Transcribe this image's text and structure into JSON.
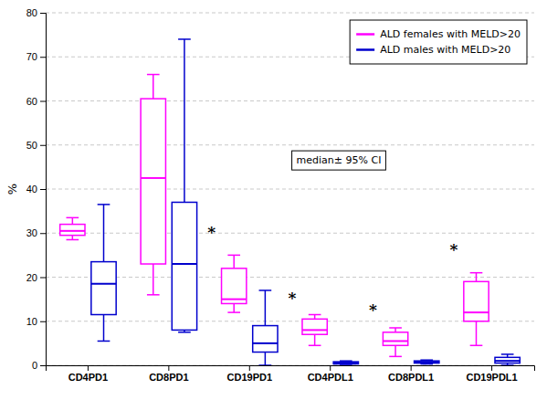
{
  "chart_data": {
    "type": "box",
    "categories": [
      "CD4PD1",
      "CD8PD1",
      "CD19PD1",
      "CD4PDL1",
      "CD8PDL1",
      "CD19PDL1"
    ],
    "series": [
      {
        "name": "ALD females with MELD>20",
        "color": "#FF00FF",
        "values": [
          {
            "whislo": 28.5,
            "q1": 29.5,
            "med": 30.5,
            "q3": 32.0,
            "whishi": 33.5
          },
          {
            "whislo": 16.0,
            "q1": 23.0,
            "med": 42.5,
            "q3": 60.5,
            "whishi": 66.0
          },
          {
            "whislo": 12.0,
            "q1": 14.0,
            "med": 15.0,
            "q3": 22.0,
            "whishi": 25.0
          },
          {
            "whislo": 4.5,
            "q1": 7.0,
            "med": 8.0,
            "q3": 10.5,
            "whishi": 11.5
          },
          {
            "whislo": 2.0,
            "q1": 4.5,
            "med": 5.5,
            "q3": 7.5,
            "whishi": 8.5
          },
          {
            "whislo": 4.5,
            "q1": 10.0,
            "med": 12.0,
            "q3": 19.0,
            "whishi": 21.0
          }
        ]
      },
      {
        "name": "ALD males with MELD>20",
        "color": "#0000CD",
        "values": [
          {
            "whislo": 5.5,
            "q1": 11.5,
            "med": 18.5,
            "q3": 23.5,
            "whishi": 36.5
          },
          {
            "whislo": 7.5,
            "q1": 8.0,
            "med": 23.0,
            "q3": 37.0,
            "whishi": 74.0
          },
          {
            "whislo": 0.0,
            "q1": 3.0,
            "med": 5.0,
            "q3": 9.0,
            "whishi": 17.0
          },
          {
            "whislo": 0.2,
            "q1": 0.3,
            "med": 0.6,
            "q3": 0.8,
            "whishi": 1.0
          },
          {
            "whislo": 0.3,
            "q1": 0.5,
            "med": 0.7,
            "q3": 1.0,
            "whishi": 1.2
          },
          {
            "whislo": 0.0,
            "q1": 0.5,
            "med": 1.0,
            "q3": 1.8,
            "whishi": 2.5
          }
        ]
      }
    ],
    "stars": [
      {
        "category": "CD19PD1",
        "y": 29.0,
        "text": "*"
      },
      {
        "category": "CD4PDL1",
        "y": 14.0,
        "text": "*"
      },
      {
        "category": "CD8PDL1",
        "y": 11.5,
        "text": "*"
      },
      {
        "category": "CD19PDL1",
        "y": 25.0,
        "text": "*"
      }
    ],
    "ylabel": "%",
    "ylim": [
      0,
      80
    ],
    "yticks": [
      0,
      10,
      20,
      30,
      40,
      50,
      60,
      70,
      80
    ],
    "grid": true,
    "legend": "upper right",
    "annotation": "median± 95% CI"
  }
}
